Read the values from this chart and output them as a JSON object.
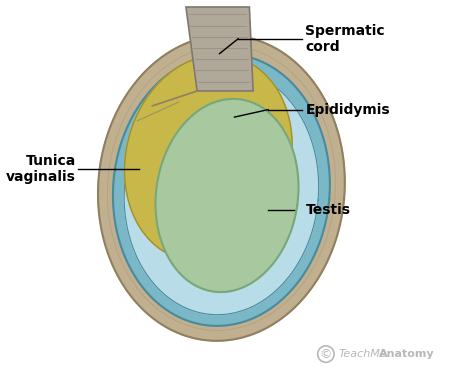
{
  "background_color": "#ffffff",
  "figsize": [
    4.73,
    3.76
  ],
  "dpi": 100,
  "labels": {
    "spermatic_cord": "Spermatic\ncord",
    "epididymis": "Epididymis",
    "tunica_vaginalis": "Tunica\nvaginalis",
    "testis": "Testis"
  },
  "colors": {
    "outer_sac": "#7ab8c8",
    "outer_sac_edge": "#4a8a9a",
    "tunica_inner": "#b8dce8",
    "epididymis": "#c8b84a",
    "epididymis_edge": "#a09030",
    "testis": "#a8c8a0",
    "testis_edge": "#78a878",
    "spermatic_cord": "#b0a898",
    "spermatic_cord_edge": "#807870",
    "scrotum_outer": "#c0b090",
    "scrotum_edge": "#908060",
    "line_color": "#000000",
    "watermark_color": "#b8b8b8"
  },
  "font_sizes": {
    "labels": 10,
    "watermark": 8
  }
}
